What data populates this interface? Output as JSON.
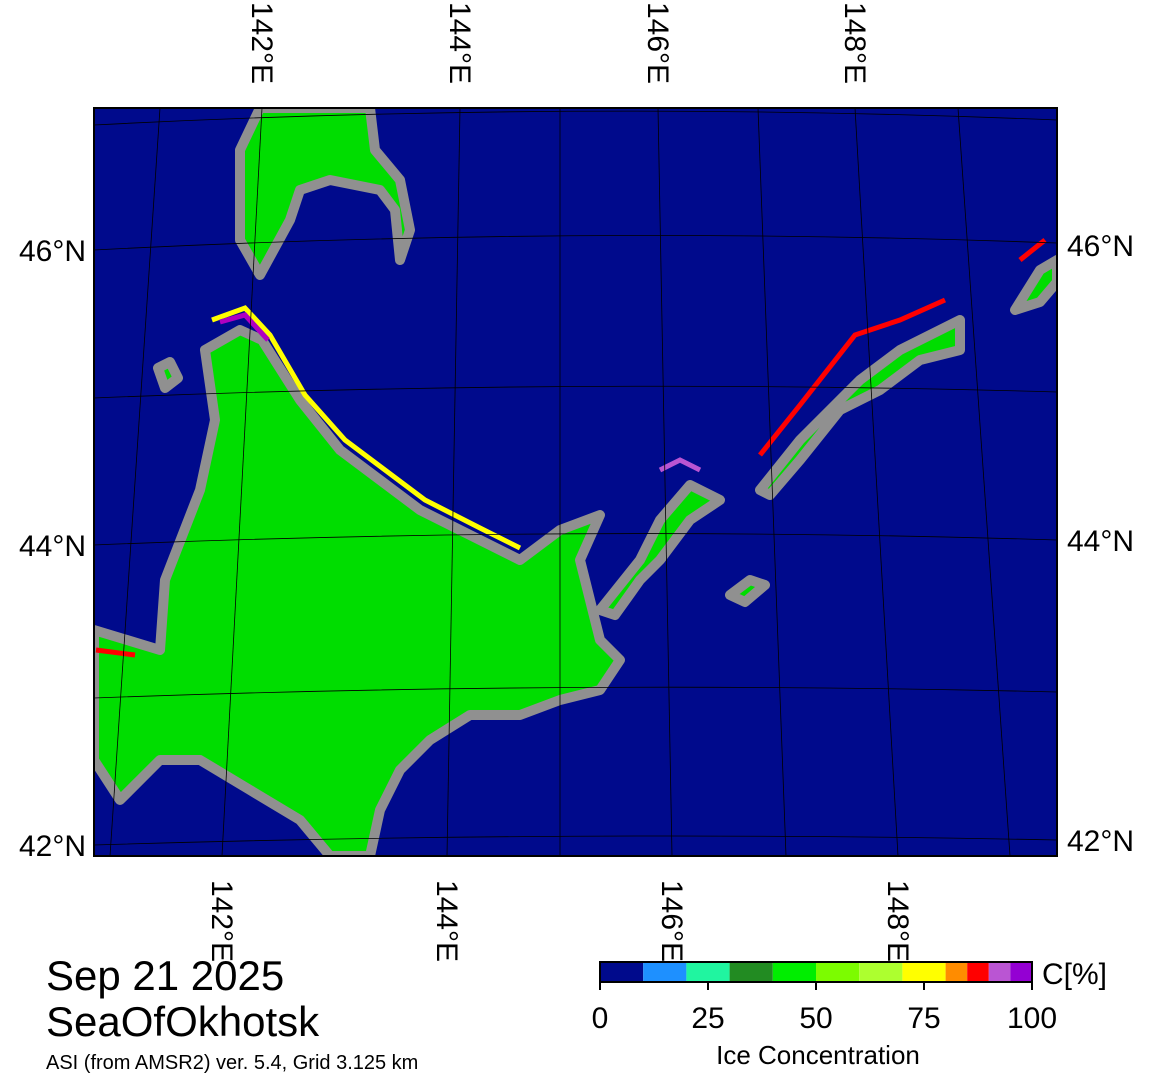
{
  "map": {
    "date": "Sep 21 2025",
    "region": "SeaOfOkhotsk",
    "note": "ASI (from AMSR2) ver. 5.4,  Grid 3.125 km",
    "lon_labels": [
      "142°E",
      "144°E",
      "146°E",
      "148°E"
    ],
    "lat_labels": [
      "46°N",
      "44°N",
      "42°N"
    ],
    "colorbar": {
      "label": "Ice Concentration",
      "unit": "C[%]",
      "lim": [
        0,
        100
      ],
      "bounds": [
        0,
        10,
        20,
        30,
        40,
        50,
        60,
        70,
        80,
        85,
        90,
        95,
        100
      ],
      "colors": [
        "#000a8c",
        "#1e90ff",
        "#20f5a0",
        "#228b22",
        "#00ee00",
        "#7cfc00",
        "#adff2f",
        "#ffff00",
        "#ff8c00",
        "#ff0000",
        "#ba55d3",
        "#9400d3"
      ],
      "ticks": [
        0,
        25,
        50,
        75,
        100
      ]
    }
  }
}
